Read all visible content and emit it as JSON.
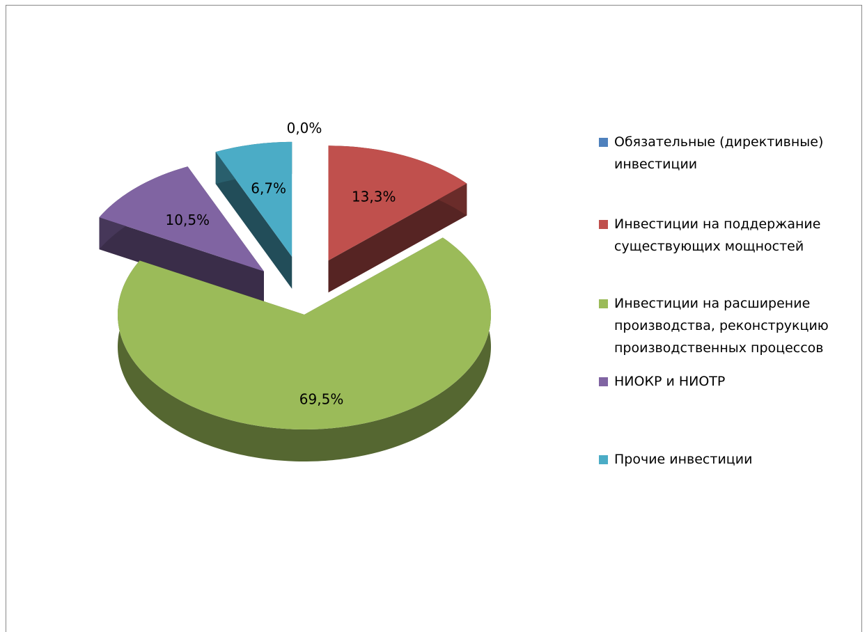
{
  "chart_data": {
    "type": "pie",
    "categories": [
      "Обязательные (директивные) инвестиции",
      "Инвестиции на поддержание существующих мощностей",
      "Инвестиции на расширение производства, реконструкцию производственных процессов",
      "НИОКР и НИОТР",
      "Прочие инвестиции"
    ],
    "values": [
      0.0,
      13.3,
      69.5,
      10.5,
      6.7
    ],
    "value_labels": [
      "0,0%",
      "13,3%",
      "69,5%",
      "10,5%",
      "6,7%"
    ],
    "colors": [
      "#4f81bd",
      "#c0504d",
      "#9bbb59",
      "#8064a2",
      "#4bacc6"
    ],
    "legend": "right"
  }
}
